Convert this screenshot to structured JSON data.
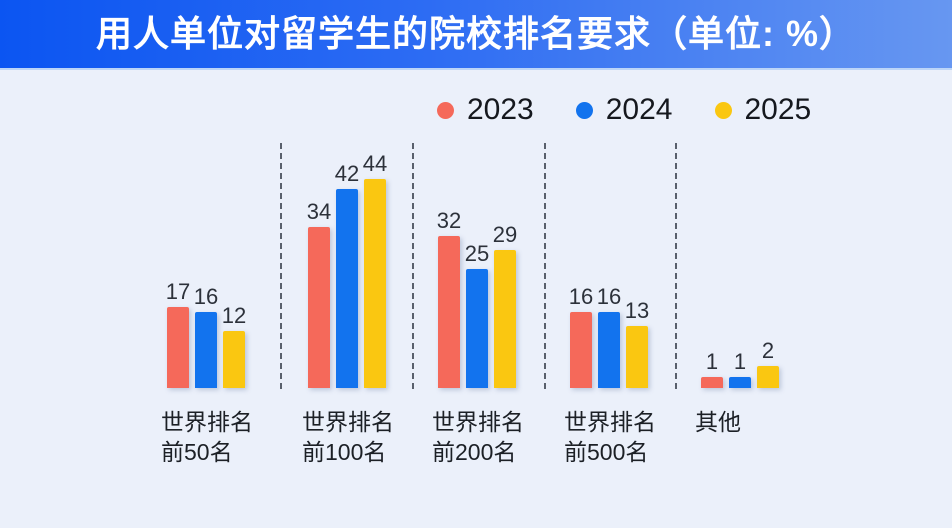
{
  "header": {
    "title": "用人单位对留学生的院校排名要求（单位: %）",
    "banner_gradient_left": "#0B55F2",
    "banner_gradient_right": "#6797F1"
  },
  "legend": {
    "items": [
      {
        "label": "2023",
        "color": "#F5695A"
      },
      {
        "label": "2024",
        "color": "#1273EE"
      },
      {
        "label": "2025",
        "color": "#FAC711"
      }
    ]
  },
  "chart_data": {
    "type": "bar",
    "title": "用人单位对留学生的院校排名要求",
    "unit": "%",
    "categories": [
      "世界排名前50名",
      "世界排名前100名",
      "世界排名前200名",
      "世界排名前500名",
      "其他"
    ],
    "category_label_lines": [
      [
        "世界排名",
        "前50名"
      ],
      [
        "世界排名",
        "前100名"
      ],
      [
        "世界排名",
        "前200名"
      ],
      [
        "世界排名",
        "前500名"
      ],
      [
        "其他"
      ]
    ],
    "series": [
      {
        "name": "2023",
        "color": "#F5695A",
        "values": [
          17,
          34,
          32,
          16,
          1
        ]
      },
      {
        "name": "2024",
        "color": "#1273EE",
        "values": [
          16,
          42,
          25,
          16,
          1
        ]
      },
      {
        "name": "2025",
        "color": "#FAC711",
        "values": [
          12,
          44,
          29,
          13,
          2
        ]
      }
    ],
    "ylim": [
      0,
      50
    ],
    "grid": false,
    "value_labels": "above-bars",
    "legend_position": "top-center",
    "group_separators": "dashed-vertical"
  }
}
